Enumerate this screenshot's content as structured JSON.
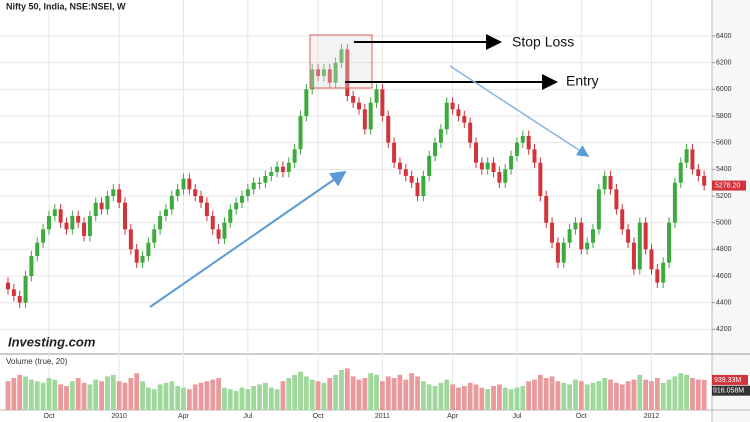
{
  "chart_data": {
    "type": "candlestick",
    "title": "Nifty 50, India, NSE:NSEI, W",
    "logo": "Investing.com",
    "volume_title": "Volume (true, 20)",
    "annotations": {
      "stop_loss": "Stop Loss",
      "entry": "Entry"
    },
    "up_color": "#3daa3d",
    "down_color": "#d2343c",
    "volume_up_color": "#9ed99b",
    "volume_down_color": "#e99a9c",
    "ylim": [
      4030,
      6565
    ],
    "yticks": [
      4200,
      4400,
      4600,
      4800,
      5000,
      5200,
      5400,
      5600,
      5800,
      6000,
      6200,
      6400
    ],
    "last_price": {
      "value": 5278.2,
      "label": "5278.20"
    },
    "volume_ylim": [
      0,
      1500
    ],
    "volume_last": {
      "value": 939.33,
      "label": "939.33M"
    },
    "volume_ma_last": {
      "value": 916.058,
      "label": "916.058M"
    },
    "grid": true,
    "categories": [
      null,
      null,
      null,
      null,
      null,
      null,
      null,
      "Oct",
      null,
      null,
      null,
      null,
      null,
      null,
      null,
      null,
      null,
      null,
      null,
      "2010",
      null,
      null,
      null,
      null,
      null,
      null,
      null,
      null,
      null,
      null,
      "Apr",
      null,
      null,
      null,
      null,
      null,
      null,
      null,
      null,
      null,
      null,
      "Jul",
      null,
      null,
      null,
      null,
      null,
      null,
      null,
      null,
      null,
      null,
      null,
      "Oct",
      null,
      null,
      null,
      null,
      null,
      null,
      null,
      null,
      null,
      null,
      "2011",
      null,
      null,
      null,
      null,
      null,
      null,
      null,
      null,
      null,
      null,
      null,
      "Apr",
      null,
      null,
      null,
      null,
      null,
      null,
      null,
      null,
      null,
      null,
      "Jul",
      null,
      null,
      null,
      null,
      null,
      null,
      null,
      null,
      null,
      null,
      "Oct",
      null,
      null,
      null,
      null,
      null,
      null,
      null,
      null,
      null,
      null,
      null,
      "2012",
      null,
      null,
      null,
      null,
      null,
      null,
      null,
      null,
      null
    ],
    "candles": [
      [
        4550,
        4590,
        4460,
        4500
      ],
      [
        4500,
        4540,
        4410,
        4450
      ],
      [
        4450,
        4490,
        4360,
        4400
      ],
      [
        4400,
        4640,
        4360,
        4600
      ],
      [
        4600,
        4790,
        4560,
        4750
      ],
      [
        4750,
        4890,
        4710,
        4850
      ],
      [
        4850,
        4990,
        4810,
        4950
      ],
      [
        4950,
        5090,
        4910,
        5050
      ],
      [
        5050,
        5140,
        5010,
        5100
      ],
      [
        5100,
        5140,
        4960,
        5000
      ],
      [
        5000,
        5040,
        4910,
        4950
      ],
      [
        4950,
        5090,
        4910,
        5050
      ],
      [
        5050,
        5090,
        4960,
        5000
      ],
      [
        5000,
        5040,
        4860,
        4900
      ],
      [
        4900,
        5090,
        4860,
        5050
      ],
      [
        5050,
        5190,
        5010,
        5150
      ],
      [
        5150,
        5190,
        5060,
        5100
      ],
      [
        5100,
        5240,
        5060,
        5200
      ],
      [
        5200,
        5290,
        5160,
        5250
      ],
      [
        5250,
        5290,
        5110,
        5150
      ],
      [
        5150,
        5190,
        4910,
        4950
      ],
      [
        4950,
        4990,
        4760,
        4800
      ],
      [
        4800,
        4840,
        4660,
        4700
      ],
      [
        4700,
        4790,
        4660,
        4750
      ],
      [
        4750,
        4890,
        4710,
        4850
      ],
      [
        4850,
        4990,
        4810,
        4950
      ],
      [
        4950,
        5090,
        4910,
        5050
      ],
      [
        5050,
        5140,
        5010,
        5100
      ],
      [
        5100,
        5240,
        5060,
        5200
      ],
      [
        5200,
        5290,
        5160,
        5250
      ],
      [
        5250,
        5370,
        5210,
        5330
      ],
      [
        5330,
        5370,
        5210,
        5250
      ],
      [
        5250,
        5290,
        5160,
        5200
      ],
      [
        5200,
        5240,
        5110,
        5150
      ],
      [
        5150,
        5190,
        5010,
        5050
      ],
      [
        5050,
        5090,
        4910,
        4950
      ],
      [
        4950,
        4990,
        4840,
        4880
      ],
      [
        4880,
        5040,
        4840,
        5000
      ],
      [
        5000,
        5140,
        4960,
        5100
      ],
      [
        5100,
        5190,
        5060,
        5150
      ],
      [
        5150,
        5240,
        5110,
        5200
      ],
      [
        5200,
        5290,
        5160,
        5250
      ],
      [
        5250,
        5340,
        5210,
        5300
      ],
      [
        5290,
        5340,
        5250,
        5300
      ],
      [
        5300,
        5390,
        5260,
        5350
      ],
      [
        5350,
        5420,
        5310,
        5380
      ],
      [
        5380,
        5460,
        5340,
        5420
      ],
      [
        5420,
        5460,
        5340,
        5380
      ],
      [
        5380,
        5490,
        5340,
        5450
      ],
      [
        5450,
        5590,
        5410,
        5550
      ],
      [
        5550,
        5840,
        5510,
        5800
      ],
      [
        5800,
        6040,
        5760,
        6000
      ],
      [
        6000,
        6190,
        5960,
        6150
      ],
      [
        6150,
        6190,
        6060,
        6100
      ],
      [
        6100,
        6190,
        6060,
        6150
      ],
      [
        6150,
        6190,
        6010,
        6050
      ],
      [
        6050,
        6240,
        6010,
        6200
      ],
      [
        6200,
        6340,
        6160,
        6300
      ],
      [
        6300,
        6340,
        5910,
        5950
      ],
      [
        5950,
        5990,
        5860,
        5900
      ],
      [
        5900,
        5940,
        5810,
        5850
      ],
      [
        5850,
        5890,
        5660,
        5700
      ],
      [
        5700,
        5940,
        5660,
        5900
      ],
      [
        5900,
        6040,
        5860,
        6000
      ],
      [
        6000,
        6040,
        5760,
        5800
      ],
      [
        5800,
        5840,
        5560,
        5600
      ],
      [
        5600,
        5640,
        5410,
        5450
      ],
      [
        5450,
        5490,
        5360,
        5400
      ],
      [
        5400,
        5440,
        5310,
        5350
      ],
      [
        5350,
        5390,
        5260,
        5300
      ],
      [
        5300,
        5340,
        5160,
        5200
      ],
      [
        5200,
        5390,
        5160,
        5350
      ],
      [
        5350,
        5540,
        5310,
        5500
      ],
      [
        5500,
        5640,
        5460,
        5600
      ],
      [
        5600,
        5740,
        5560,
        5700
      ],
      [
        5700,
        5940,
        5660,
        5900
      ],
      [
        5900,
        5940,
        5810,
        5850
      ],
      [
        5850,
        5890,
        5760,
        5800
      ],
      [
        5800,
        5840,
        5710,
        5750
      ],
      [
        5750,
        5790,
        5560,
        5600
      ],
      [
        5600,
        5640,
        5410,
        5450
      ],
      [
        5450,
        5490,
        5360,
        5400
      ],
      [
        5400,
        5490,
        5360,
        5450
      ],
      [
        5450,
        5490,
        5340,
        5380
      ],
      [
        5380,
        5420,
        5260,
        5300
      ],
      [
        5300,
        5440,
        5260,
        5400
      ],
      [
        5400,
        5540,
        5360,
        5500
      ],
      [
        5500,
        5640,
        5460,
        5600
      ],
      [
        5600,
        5690,
        5560,
        5650
      ],
      [
        5650,
        5690,
        5510,
        5550
      ],
      [
        5550,
        5590,
        5410,
        5450
      ],
      [
        5450,
        5490,
        5160,
        5200
      ],
      [
        5200,
        5240,
        4960,
        5000
      ],
      [
        5000,
        5040,
        4810,
        4850
      ],
      [
        4850,
        4890,
        4660,
        4700
      ],
      [
        4700,
        4890,
        4660,
        4850
      ],
      [
        4850,
        4990,
        4810,
        4950
      ],
      [
        4950,
        5040,
        4910,
        5000
      ],
      [
        5000,
        5040,
        4760,
        4800
      ],
      [
        4800,
        4890,
        4760,
        4850
      ],
      [
        4850,
        4990,
        4810,
        4950
      ],
      [
        4950,
        5290,
        4910,
        5250
      ],
      [
        5250,
        5390,
        5210,
        5350
      ],
      [
        5350,
        5390,
        5210,
        5250
      ],
      [
        5250,
        5290,
        5060,
        5100
      ],
      [
        5100,
        5140,
        4910,
        4950
      ],
      [
        4950,
        4990,
        4810,
        4850
      ],
      [
        4850,
        4890,
        4610,
        4650
      ],
      [
        4650,
        5040,
        4610,
        5000
      ],
      [
        5000,
        5040,
        4760,
        4800
      ],
      [
        4800,
        4840,
        4610,
        4650
      ],
      [
        4650,
        4690,
        4510,
        4550
      ],
      [
        4550,
        4740,
        4510,
        4700
      ],
      [
        4700,
        5040,
        4660,
        5000
      ],
      [
        5000,
        5340,
        4960,
        5300
      ],
      [
        5300,
        5490,
        5260,
        5450
      ],
      [
        5450,
        5590,
        5410,
        5550
      ],
      [
        5550,
        5590,
        5360,
        5400
      ],
      [
        5400,
        5440,
        5310,
        5350
      ],
      [
        5350,
        5390,
        5240,
        5278.2
      ]
    ],
    "volume": [
      900,
      1000,
      1100,
      1050,
      950,
      900,
      850,
      1000,
      950,
      800,
      750,
      900,
      1000,
      850,
      800,
      950,
      900,
      1050,
      1100,
      900,
      850,
      1000,
      1150,
      900,
      700,
      650,
      800,
      850,
      900,
      750,
      700,
      650,
      800,
      850,
      900,
      950,
      1000,
      700,
      650,
      600,
      700,
      650,
      750,
      800,
      850,
      700,
      650,
      900,
      1000,
      1100,
      1200,
      1050,
      950,
      900,
      850,
      1000,
      1100,
      1250,
      1300,
      1050,
      950,
      1000,
      1150,
      1100,
      900,
      1050,
      1000,
      1100,
      950,
      1150,
      1050,
      900,
      800,
      750,
      850,
      950,
      800,
      700,
      750,
      850,
      800,
      700,
      650,
      750,
      800,
      700,
      650,
      700,
      750,
      900,
      950,
      1100,
      1000,
      1050,
      900,
      850,
      800,
      950,
      900,
      800,
      850,
      900,
      1000,
      950,
      850,
      800,
      900,
      950,
      1100,
      950,
      900,
      1000,
      850,
      950,
      1050,
      1150,
      1100,
      1000,
      950,
      939.33
    ]
  }
}
